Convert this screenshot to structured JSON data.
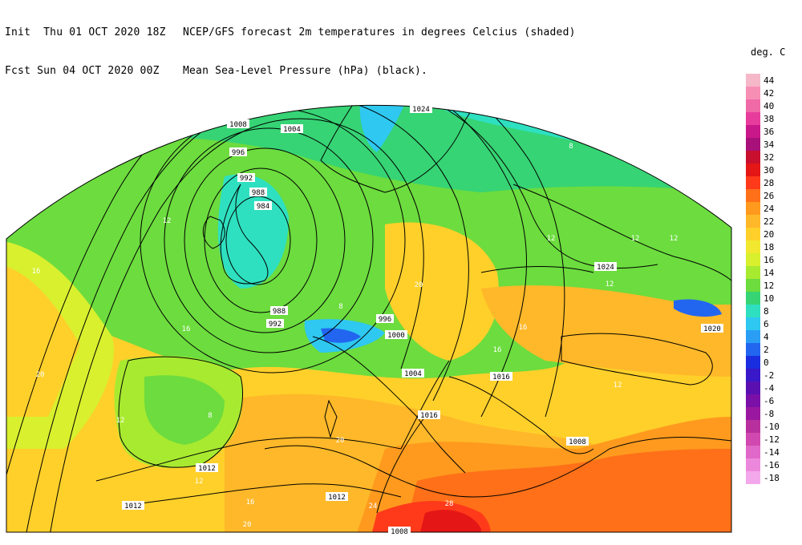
{
  "header": {
    "init_line": "Init  Thu 01 OCT 2020 18Z",
    "fcst_line": "Fcst Sun 04 OCT 2020 00Z",
    "title_line1": "NCEP/GFS forecast 2m temperatures in degrees Celcius (shaded)",
    "title_line2": "Mean Sea-Level Pressure (hPa) (black)."
  },
  "legend": {
    "unit": "deg. C",
    "entries": [
      {
        "label": "44",
        "color": "#f5b8c8"
      },
      {
        "label": "42",
        "color": "#f78fb5"
      },
      {
        "label": "40",
        "color": "#f06aa8"
      },
      {
        "label": "38",
        "color": "#e83c9c"
      },
      {
        "label": "36",
        "color": "#c8188a"
      },
      {
        "label": "34",
        "color": "#a8107a"
      },
      {
        "label": "32",
        "color": "#c8102e"
      },
      {
        "label": "30",
        "color": "#e41616"
      },
      {
        "label": "28",
        "color": "#ff3a1a"
      },
      {
        "label": "26",
        "color": "#ff7018"
      },
      {
        "label": "24",
        "color": "#ff9a1e"
      },
      {
        "label": "22",
        "color": "#ffb829"
      },
      {
        "label": "20",
        "color": "#ffd02a"
      },
      {
        "label": "18",
        "color": "#f2e830"
      },
      {
        "label": "16",
        "color": "#d8f02e"
      },
      {
        "label": "14",
        "color": "#a8ea30"
      },
      {
        "label": "12",
        "color": "#6cdc3e"
      },
      {
        "label": "10",
        "color": "#36d474"
      },
      {
        "label": "8",
        "color": "#2ee0c0"
      },
      {
        "label": "6",
        "color": "#2ec8f0"
      },
      {
        "label": "4",
        "color": "#2a9ef5"
      },
      {
        "label": "2",
        "color": "#2266f0"
      },
      {
        "label": "0",
        "color": "#1a2ee0"
      },
      {
        "label": "-2",
        "color": "#3818c8"
      },
      {
        "label": "-4",
        "color": "#5a10b0"
      },
      {
        "label": "-6",
        "color": "#7a10a8"
      },
      {
        "label": "-8",
        "color": "#9a18a0"
      },
      {
        "label": "-10",
        "color": "#b8309e"
      },
      {
        "label": "-12",
        "color": "#d048b0"
      },
      {
        "label": "-14",
        "color": "#e068c8"
      },
      {
        "label": "-16",
        "color": "#ec88dc"
      },
      {
        "label": "-18",
        "color": "#f4a8ec"
      }
    ]
  },
  "pressure_labels": [
    {
      "text": "1008"
    },
    {
      "text": "1004"
    },
    {
      "text": "996"
    },
    {
      "text": "992"
    },
    {
      "text": "988"
    },
    {
      "text": "984"
    },
    {
      "text": "1024"
    },
    {
      "text": "988"
    },
    {
      "text": "992"
    },
    {
      "text": "996"
    },
    {
      "text": "1000"
    },
    {
      "text": "1004"
    },
    {
      "text": "1016"
    },
    {
      "text": "1024"
    },
    {
      "text": "1020"
    },
    {
      "text": "1008"
    },
    {
      "text": "1012"
    },
    {
      "text": "1012"
    },
    {
      "text": "1012"
    },
    {
      "text": "1016"
    },
    {
      "text": "1008"
    }
  ],
  "temperature_labels": [
    {
      "text": "4"
    },
    {
      "text": "4"
    },
    {
      "text": "8"
    },
    {
      "text": "8"
    },
    {
      "text": "8"
    },
    {
      "text": "12"
    },
    {
      "text": "12"
    },
    {
      "text": "12"
    },
    {
      "text": "12"
    },
    {
      "text": "12"
    },
    {
      "text": "16"
    },
    {
      "text": "16"
    },
    {
      "text": "16"
    },
    {
      "text": "16"
    },
    {
      "text": "20"
    },
    {
      "text": "20"
    },
    {
      "text": "20"
    },
    {
      "text": "20"
    },
    {
      "text": "24"
    },
    {
      "text": "28"
    },
    {
      "text": "12"
    },
    {
      "text": "8"
    },
    {
      "text": "12"
    },
    {
      "text": "16"
    },
    {
      "text": "12"
    }
  ],
  "colors": {
    "frame": "#000000",
    "isobar": "#000000",
    "coast": "#000000"
  }
}
